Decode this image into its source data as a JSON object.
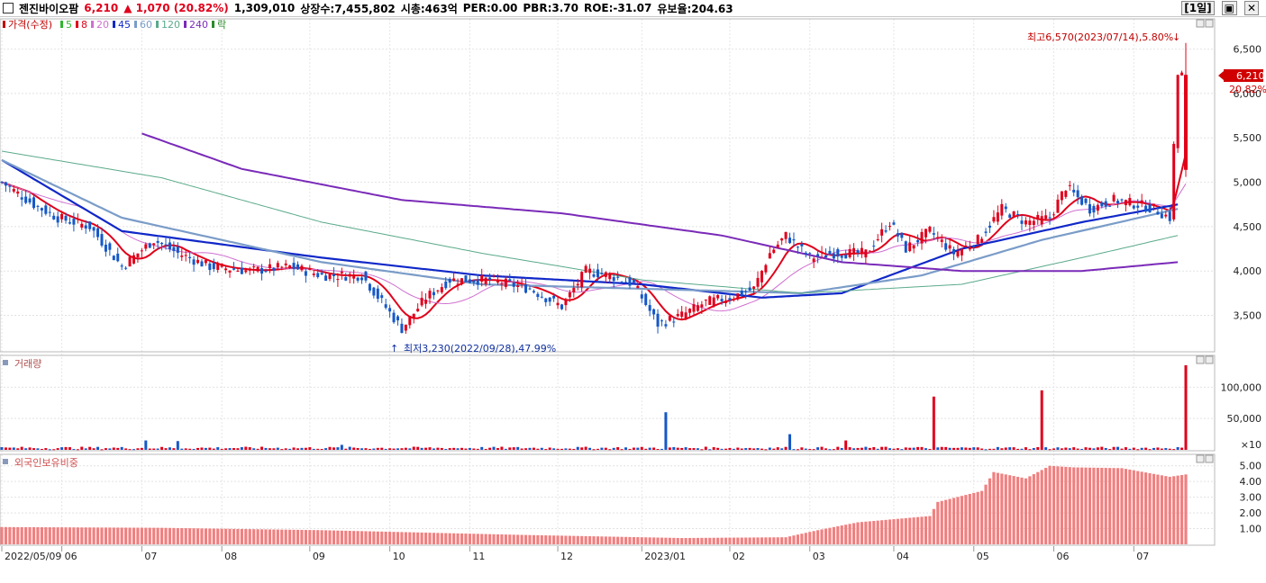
{
  "header": {
    "name": "젠진바이오팜",
    "price": "6,210",
    "change": "▲ 1,070 (20.82%)",
    "volume": "1,309,010",
    "listed": "상장수:7,455,802",
    "mcap": "시총:463억",
    "per": "PER:0.00",
    "pbr": "PBR:3.70",
    "roe": "ROE:-31.07",
    "float": "유보율:204.63",
    "period_btn": "[1일]"
  },
  "legends": {
    "price": [
      "가격(수정)",
      "5",
      "8",
      "20",
      "45",
      "60",
      "120",
      "240",
      "락"
    ],
    "volume": "거래량",
    "foreign": "외국인보유비중"
  },
  "annotations": {
    "high": "최고6,570(2023/07/14),5.80%",
    "low": "최저3,230(2022/09/28),47.99%",
    "last_price": "6,210",
    "last_change": "20.82%"
  },
  "colors": {
    "up": "#e0001a",
    "down": "#1558c8",
    "ma5": "#2fb52f",
    "ma8": "#e0001a",
    "ma20": "#d070d0",
    "ma45": "#1028c8",
    "ma60": "#7a9cc8",
    "ma120": "#5aaa8a",
    "ma240": "#7a2ab8",
    "foreign": "#f08080"
  },
  "chart_data": [
    {
      "type": "candlestick",
      "title": "가격(수정)",
      "ylim": [
        3100,
        6800
      ],
      "yticks": [
        "3,500",
        "4,000",
        "4,500",
        "5,000",
        "5,500",
        "6,000",
        "6,500"
      ],
      "ytick_values": [
        3500,
        4000,
        4500,
        5000,
        5500,
        6000,
        6500
      ],
      "x_labels": [
        "2022/05/09",
        "06",
        "07",
        "08",
        "09",
        "10",
        "11",
        "12",
        "2023/01",
        "02",
        "03",
        "04",
        "05",
        "06",
        "07"
      ],
      "close_anchors": [
        [
          0,
          5000
        ],
        [
          8,
          4750
        ],
        [
          14,
          4600
        ],
        [
          22,
          4500
        ],
        [
          30,
          4050
        ],
        [
          38,
          4350
        ],
        [
          44,
          4200
        ],
        [
          52,
          4050
        ],
        [
          62,
          4000
        ],
        [
          72,
          4050
        ],
        [
          80,
          3950
        ],
        [
          90,
          3950
        ],
        [
          100,
          3350
        ],
        [
          106,
          3700
        ],
        [
          112,
          3900
        ],
        [
          122,
          3900
        ],
        [
          132,
          3800
        ],
        [
          140,
          3600
        ],
        [
          146,
          4000
        ],
        [
          152,
          3950
        ],
        [
          158,
          3850
        ],
        [
          164,
          3400
        ],
        [
          170,
          3500
        ],
        [
          176,
          3650
        ],
        [
          182,
          3700
        ],
        [
          188,
          3800
        ],
        [
          192,
          4200
        ],
        [
          196,
          4400
        ],
        [
          202,
          4150
        ],
        [
          208,
          4200
        ],
        [
          216,
          4200
        ],
        [
          222,
          4550
        ],
        [
          226,
          4250
        ],
        [
          232,
          4450
        ],
        [
          238,
          4200
        ],
        [
          244,
          4350
        ],
        [
          250,
          4700
        ],
        [
          256,
          4550
        ],
        [
          262,
          4600
        ],
        [
          266,
          4950
        ],
        [
          272,
          4700
        ],
        [
          278,
          4800
        ],
        [
          284,
          4750
        ],
        [
          288,
          4700
        ],
        [
          292,
          4600
        ],
        [
          294,
          6210
        ]
      ],
      "last": {
        "open": 5140,
        "high": 6570,
        "low": 5060,
        "close": 6210
      },
      "ma_lines": [
        {
          "name": "5",
          "points": [
            [
              0,
              5000
            ],
            [
              294,
              4950
            ]
          ]
        },
        {
          "name": "45",
          "anchors": [
            [
              0,
              5250
            ],
            [
              30,
              4450
            ],
            [
              80,
              4150
            ],
            [
              120,
              3950
            ],
            [
              160,
              3850
            ],
            [
              190,
              3700
            ],
            [
              210,
              3750
            ],
            [
              240,
              4250
            ],
            [
              270,
              4550
            ],
            [
              294,
              4750
            ]
          ]
        },
        {
          "name": "60",
          "anchors": [
            [
              0,
              5250
            ],
            [
              30,
              4600
            ],
            [
              80,
              4100
            ],
            [
              120,
              3850
            ],
            [
              160,
              3800
            ],
            [
              200,
              3750
            ],
            [
              230,
              3950
            ],
            [
              260,
              4350
            ],
            [
              294,
              4700
            ]
          ]
        },
        {
          "name": "120",
          "anchors": [
            [
              0,
              5350
            ],
            [
              40,
              5050
            ],
            [
              80,
              4550
            ],
            [
              120,
              4200
            ],
            [
              160,
              3900
            ],
            [
              200,
              3750
            ],
            [
              240,
              3850
            ],
            [
              270,
              4150
            ],
            [
              294,
              4400
            ]
          ]
        },
        {
          "name": "240",
          "anchors": [
            [
              35,
              5550
            ],
            [
              60,
              5150
            ],
            [
              100,
              4800
            ],
            [
              140,
              4650
            ],
            [
              180,
              4400
            ],
            [
              210,
              4100
            ],
            [
              240,
              4000
            ],
            [
              270,
              4000
            ],
            [
              294,
              4100
            ]
          ]
        }
      ]
    },
    {
      "type": "bar",
      "title": "거래량",
      "ylim": [
        0,
        145000
      ],
      "yticks": [
        "100,000",
        "50,000"
      ],
      "ytick_values": [
        100000,
        50000
      ],
      "unit_label": "×10",
      "spikes": [
        [
          36,
          15000
        ],
        [
          44,
          14000
        ],
        [
          85,
          8000
        ],
        [
          166,
          60000
        ],
        [
          197,
          25000
        ],
        [
          211,
          15000
        ],
        [
          233,
          85000
        ],
        [
          260,
          95000
        ],
        [
          296,
          135000
        ]
      ]
    },
    {
      "type": "bar",
      "title": "외국인보유비중",
      "ylim": [
        0,
        5.5
      ],
      "yticks": [
        "5.00",
        "4.00",
        "3.00",
        "2.00",
        "1.00"
      ],
      "ytick_values": [
        5,
        4,
        3,
        2,
        1
      ],
      "anchors": [
        [
          0,
          1.1
        ],
        [
          40,
          1.05
        ],
        [
          80,
          0.9
        ],
        [
          130,
          0.6
        ],
        [
          170,
          0.4
        ],
        [
          196,
          0.45
        ],
        [
          204,
          0.9
        ],
        [
          214,
          1.4
        ],
        [
          232,
          1.8
        ],
        [
          234,
          2.7
        ],
        [
          245,
          3.4
        ],
        [
          248,
          4.6
        ],
        [
          256,
          4.2
        ],
        [
          262,
          5.0
        ],
        [
          268,
          4.9
        ],
        [
          280,
          4.85
        ],
        [
          292,
          4.3
        ],
        [
          296,
          4.45
        ]
      ]
    }
  ]
}
